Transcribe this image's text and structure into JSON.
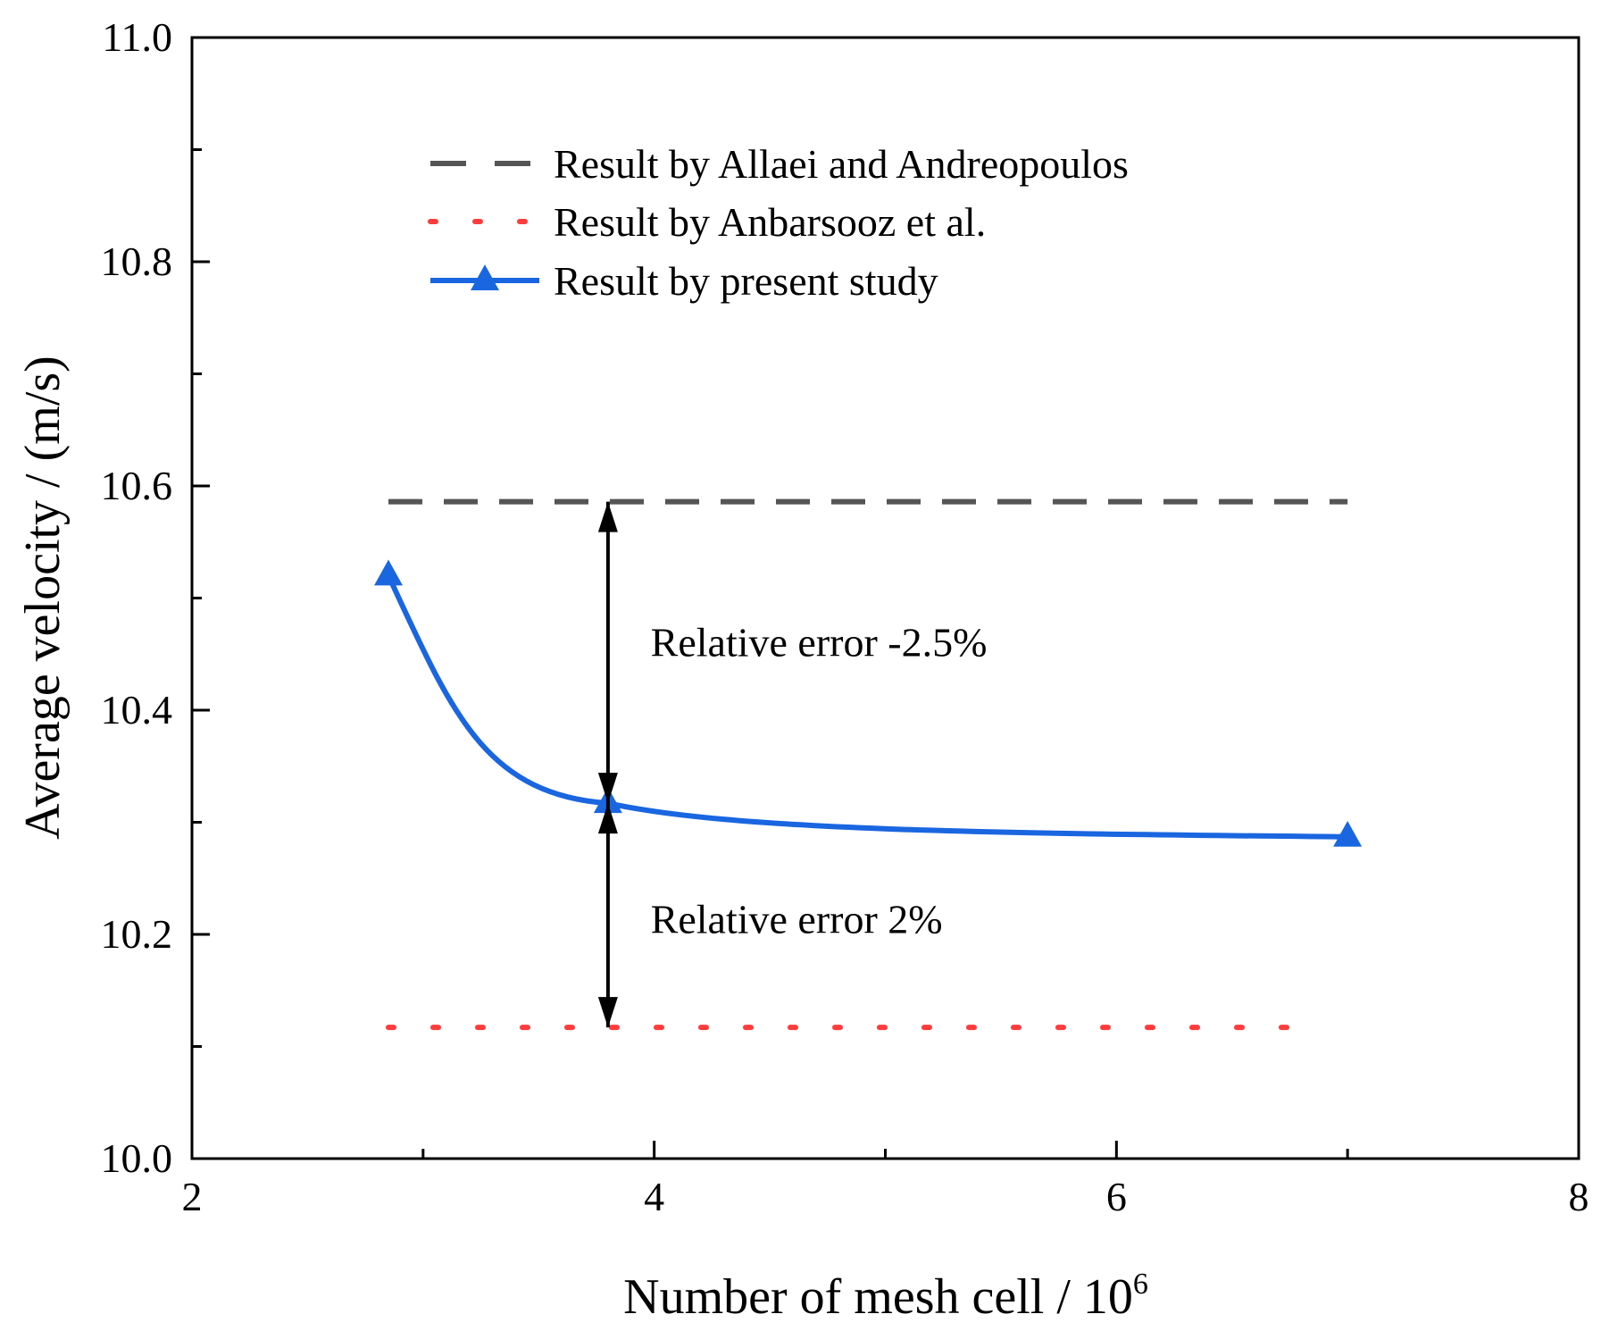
{
  "chart_data": {
    "type": "line",
    "xlabel": "Number of mesh cell / 10",
    "xlabel_superscript": "6",
    "ylabel": "Average velocity / (m/s)",
    "xlim": [
      2,
      8
    ],
    "ylim": [
      10.0,
      11.0
    ],
    "x_ticks": [
      "2",
      "4",
      "6",
      "8"
    ],
    "y_ticks": [
      "10.0",
      "10.2",
      "10.4",
      "10.6",
      "10.8",
      "11.0"
    ],
    "x_tick_values": [
      2,
      4,
      6,
      8
    ],
    "y_tick_values": [
      10.0,
      10.2,
      10.4,
      10.6,
      10.8,
      11.0
    ],
    "grid": false,
    "legend_position": "top-center",
    "series": [
      {
        "name": "Result by Allaei and Andreopoulos",
        "style": "dashed",
        "color": "#555555",
        "x": [
          2.85,
          7.0
        ],
        "y": [
          10.586,
          10.586
        ]
      },
      {
        "name": "Result by Anbarsooz et al.",
        "style": "dotted",
        "color": "#ff3b3b",
        "x": [
          2.85,
          6.85
        ],
        "y": [
          10.117,
          10.117
        ]
      },
      {
        "name": "Result by present study",
        "style": "solid",
        "marker": "triangle",
        "color": "#1a66e0",
        "x": [
          2.85,
          3.8,
          7.0
        ],
        "y": [
          10.52,
          10.317,
          10.287
        ]
      }
    ],
    "annotations": [
      {
        "text": "Relative error -2.5%",
        "x": 4.0,
        "y": 10.46
      },
      {
        "text": "Relative error 2%",
        "x": 4.0,
        "y": 10.213
      }
    ],
    "arrows": [
      {
        "x": 3.8,
        "y_from": 10.317,
        "y_to": 10.586
      },
      {
        "x": 3.8,
        "y_from": 10.317,
        "y_to": 10.117
      }
    ]
  }
}
